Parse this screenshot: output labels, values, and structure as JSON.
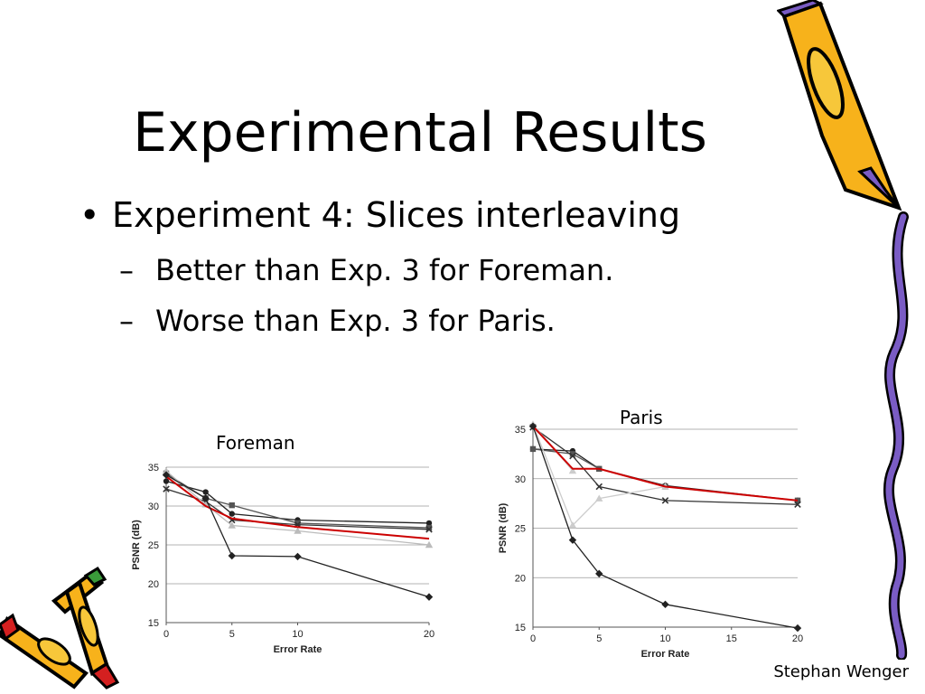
{
  "slide": {
    "title": "Experimental Results",
    "bullet": "Experiment 4: Slices interleaving",
    "sub_bullets": [
      "Better than Exp. 3 for Foreman.",
      "Worse than Exp. 3 for Paris."
    ],
    "footer": "Stephan Wenger"
  },
  "chart_data": [
    {
      "type": "line",
      "title": "Foreman",
      "xlabel": "Error Rate",
      "ylabel": "PSNR (dB)",
      "xlim": [
        0,
        20
      ],
      "ylim": [
        15,
        35
      ],
      "xticks": [
        0,
        5,
        10,
        20
      ],
      "yticks": [
        15,
        20,
        25,
        30,
        35
      ],
      "grid": "horizontal",
      "series": [
        {
          "color": "#222222",
          "marker": "circle",
          "x": [
            0,
            3,
            5,
            10,
            20
          ],
          "y": [
            33.2,
            31.8,
            29,
            28.2,
            27.8
          ]
        },
        {
          "color": "#555555",
          "marker": "square",
          "x": [
            0,
            3,
            5,
            10,
            20
          ],
          "y": [
            34.2,
            31,
            30.1,
            27.8,
            27.2
          ]
        },
        {
          "color": "#333333",
          "marker": "x",
          "x": [
            0,
            3,
            5,
            10,
            20
          ],
          "y": [
            32.2,
            30.6,
            28.2,
            27.6,
            27
          ]
        },
        {
          "color": "#bbbbbb",
          "marker": "triangle",
          "x": [
            0,
            3,
            5,
            10,
            20
          ],
          "y": [
            34.5,
            30.2,
            27.5,
            26.8,
            25
          ]
        },
        {
          "color": "#cc0000",
          "marker": "none",
          "x": [
            0,
            3,
            5,
            10,
            20
          ],
          "y": [
            33.8,
            30,
            28.4,
            27.3,
            25.8
          ]
        },
        {
          "color": "#222222",
          "marker": "diamond",
          "x": [
            0,
            3,
            5,
            10,
            20
          ],
          "y": [
            34,
            31,
            23.6,
            23.5,
            18.3
          ]
        }
      ]
    },
    {
      "type": "line",
      "title": "Paris",
      "xlabel": "Error Rate",
      "ylabel": "PSNR (dB)",
      "xlim": [
        0,
        20
      ],
      "ylim": [
        15,
        35
      ],
      "xticks": [
        0,
        5,
        10,
        15,
        20
      ],
      "yticks": [
        15,
        20,
        25,
        30,
        35
      ],
      "grid": "horizontal",
      "series": [
        {
          "color": "#222222",
          "marker": "circle",
          "x": [
            0,
            3,
            5,
            10,
            20
          ],
          "y": [
            33,
            32.8,
            31,
            29.3,
            27.8
          ]
        },
        {
          "color": "#555555",
          "marker": "square",
          "x": [
            0,
            3,
            5,
            10,
            20
          ],
          "y": [
            33,
            32.5,
            31,
            29.2,
            27.8
          ]
        },
        {
          "color": "#333333",
          "marker": "x",
          "x": [
            0,
            3,
            5,
            10,
            20
          ],
          "y": [
            35.2,
            32.3,
            29.2,
            27.8,
            27.4
          ]
        },
        {
          "color": "#cccccc",
          "marker": "triangle",
          "x": [
            0,
            3,
            5,
            10
          ],
          "y": [
            35.5,
            25.3,
            28,
            29.2
          ]
        },
        {
          "color": "#cccccc",
          "marker": "triangle",
          "x": [
            0,
            3
          ],
          "y": [
            35.5,
            30.8
          ]
        },
        {
          "color": "#cc0000",
          "marker": "none",
          "x": [
            0,
            3,
            5,
            10,
            20
          ],
          "y": [
            35.3,
            31,
            31,
            29.2,
            27.8
          ]
        },
        {
          "color": "#222222",
          "marker": "diamond",
          "x": [
            0,
            3,
            5,
            10,
            20
          ],
          "y": [
            35.3,
            23.8,
            20.4,
            17.3,
            14.9
          ]
        }
      ]
    }
  ]
}
